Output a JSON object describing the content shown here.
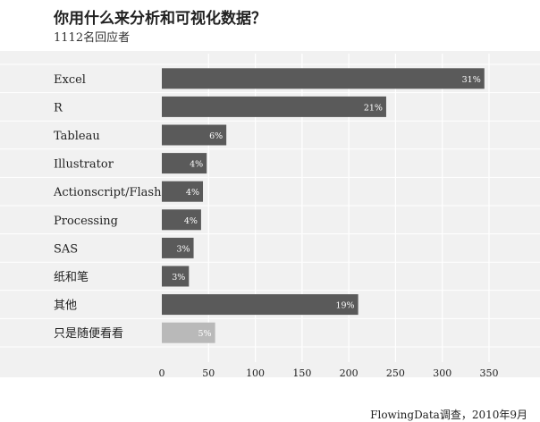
{
  "title": "你用什么来分析和可视化数据？",
  "subtitle": "1112名回应者",
  "source": "FlowingData调查，2010年9月",
  "colors": {
    "bar": "#5a5a5a",
    "bar_light": "#b9b9b9",
    "panel": "#f1f1f1",
    "grid": "#ffffff",
    "row_line": "#ffffff",
    "bar_label": "#ffffff"
  },
  "chart_data": {
    "type": "bar",
    "orientation": "horizontal",
    "title": "你用什么来分析和可视化数据？",
    "categories": [
      "Excel",
      "R",
      "Tableau",
      "Illustrator",
      "Actionscript/Flash",
      "Processing",
      "SAS",
      "纸和笔",
      "其他",
      "只是随便看看"
    ],
    "values": [
      345,
      240,
      69,
      48,
      44,
      42,
      34,
      29,
      210,
      57
    ],
    "value_labels": [
      "31%",
      "21%",
      "6%",
      "4%",
      "4%",
      "4%",
      "3%",
      "3%",
      "19%",
      "5%"
    ],
    "highlight_index": 9,
    "xlim": [
      0,
      350
    ],
    "xticks": [
      0,
      50,
      100,
      150,
      200,
      250,
      300,
      350
    ],
    "grid": true
  }
}
